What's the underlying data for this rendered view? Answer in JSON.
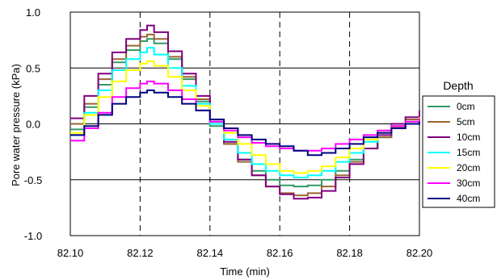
{
  "chart_data": {
    "type": "line",
    "xlabel": "Time (min)",
    "ylabel": "Pore water pressure (kPa)",
    "xlim": [
      82.1,
      82.2
    ],
    "ylim": [
      -1.0,
      1.0
    ],
    "x_ticks": [
      "82.10",
      "82.12",
      "82.14",
      "82.16",
      "82.18",
      "82.20"
    ],
    "y_ticks": [
      "1.0",
      "0.5",
      "0.0",
      "-0.5",
      "-1.0"
    ],
    "horizontal_grid": "solid at 0.5, 0.0, -0.5",
    "vertical_grid": "dashed at 82.12, 82.14, 82.16, 82.18",
    "legend_position": "right",
    "legend_title": "Depth",
    "series": [
      {
        "name": "0cm",
        "color": "#339966",
        "x": [
          82.1,
          82.104,
          82.108,
          82.112,
          82.116,
          82.12,
          82.122,
          82.124,
          82.128,
          82.132,
          82.136,
          82.14,
          82.144,
          82.148,
          82.152,
          82.156,
          82.16,
          82.164,
          82.168,
          82.172,
          82.176,
          82.18,
          82.184,
          82.188,
          82.192,
          82.196,
          82.2
        ],
        "y": [
          -0.05,
          0.15,
          0.35,
          0.55,
          0.66,
          0.74,
          0.76,
          0.72,
          0.58,
          0.4,
          0.2,
          -0.02,
          -0.18,
          -0.32,
          -0.42,
          -0.5,
          -0.55,
          -0.56,
          -0.55,
          -0.5,
          -0.42,
          -0.32,
          -0.22,
          -0.12,
          -0.04,
          0.02,
          0.08
        ]
      },
      {
        "name": "5cm",
        "color": "#996633",
        "x": [
          82.1,
          82.104,
          82.108,
          82.112,
          82.116,
          82.12,
          82.122,
          82.124,
          82.128,
          82.132,
          82.136,
          82.14,
          82.144,
          82.148,
          82.152,
          82.156,
          82.16,
          82.164,
          82.168,
          82.172,
          82.176,
          82.18,
          82.184,
          82.188,
          82.192,
          82.196,
          82.2
        ],
        "y": [
          0.0,
          0.18,
          0.4,
          0.58,
          0.7,
          0.78,
          0.8,
          0.76,
          0.6,
          0.42,
          0.22,
          0.0,
          -0.18,
          -0.34,
          -0.46,
          -0.56,
          -0.62,
          -0.64,
          -0.62,
          -0.56,
          -0.46,
          -0.34,
          -0.22,
          -0.12,
          -0.03,
          0.04,
          0.1
        ]
      },
      {
        "name": "10cm",
        "color": "#800080",
        "x": [
          82.1,
          82.104,
          82.108,
          82.112,
          82.116,
          82.12,
          82.122,
          82.124,
          82.128,
          82.132,
          82.136,
          82.14,
          82.144,
          82.148,
          82.152,
          82.156,
          82.16,
          82.164,
          82.168,
          82.172,
          82.176,
          82.18,
          82.184,
          82.188,
          82.192,
          82.196,
          82.2
        ],
        "y": [
          0.05,
          0.25,
          0.45,
          0.64,
          0.76,
          0.84,
          0.88,
          0.82,
          0.65,
          0.45,
          0.25,
          0.02,
          -0.16,
          -0.32,
          -0.46,
          -0.56,
          -0.63,
          -0.67,
          -0.66,
          -0.6,
          -0.48,
          -0.36,
          -0.22,
          -0.1,
          0.0,
          0.06,
          0.12
        ]
      },
      {
        "name": "15cm",
        "color": "#00ffff",
        "x": [
          82.1,
          82.104,
          82.108,
          82.112,
          82.116,
          82.12,
          82.122,
          82.124,
          82.128,
          82.132,
          82.136,
          82.14,
          82.144,
          82.148,
          82.152,
          82.156,
          82.16,
          82.164,
          82.168,
          82.172,
          82.176,
          82.18,
          82.184,
          82.188,
          82.192,
          82.196,
          82.2
        ],
        "y": [
          -0.1,
          0.1,
          0.3,
          0.48,
          0.58,
          0.64,
          0.68,
          0.62,
          0.5,
          0.34,
          0.18,
          0.0,
          -0.14,
          -0.26,
          -0.36,
          -0.42,
          -0.46,
          -0.48,
          -0.46,
          -0.42,
          -0.34,
          -0.26,
          -0.16,
          -0.08,
          -0.02,
          0.02,
          0.04
        ]
      },
      {
        "name": "20cm",
        "color": "#ffff00",
        "x": [
          82.1,
          82.104,
          82.108,
          82.112,
          82.116,
          82.12,
          82.122,
          82.124,
          82.128,
          82.132,
          82.136,
          82.14,
          82.144,
          82.148,
          82.152,
          82.156,
          82.16,
          82.164,
          82.168,
          82.172,
          82.176,
          82.18,
          82.184,
          82.188,
          82.192,
          82.196,
          82.2
        ],
        "y": [
          -0.08,
          0.08,
          0.24,
          0.38,
          0.48,
          0.54,
          0.56,
          0.52,
          0.42,
          0.3,
          0.16,
          0.04,
          -0.08,
          -0.18,
          -0.28,
          -0.36,
          -0.42,
          -0.44,
          -0.42,
          -0.38,
          -0.3,
          -0.22,
          -0.14,
          -0.08,
          -0.02,
          0.02,
          0.06
        ]
      },
      {
        "name": "30cm",
        "color": "#ff00ff",
        "x": [
          82.1,
          82.104,
          82.108,
          82.112,
          82.116,
          82.12,
          82.122,
          82.124,
          82.128,
          82.132,
          82.136,
          82.14,
          82.144,
          82.148,
          82.152,
          82.156,
          82.16,
          82.164,
          82.168,
          82.172,
          82.176,
          82.18,
          82.184,
          82.188,
          82.192,
          82.196,
          82.2
        ],
        "y": [
          -0.15,
          -0.04,
          0.1,
          0.24,
          0.32,
          0.36,
          0.38,
          0.36,
          0.3,
          0.22,
          0.12,
          0.02,
          -0.06,
          -0.12,
          -0.17,
          -0.2,
          -0.22,
          -0.24,
          -0.24,
          -0.22,
          -0.18,
          -0.14,
          -0.1,
          -0.06,
          -0.02,
          0.02,
          0.05
        ]
      },
      {
        "name": "40cm",
        "color": "#000080",
        "x": [
          82.1,
          82.104,
          82.108,
          82.112,
          82.116,
          82.12,
          82.122,
          82.124,
          82.128,
          82.132,
          82.136,
          82.14,
          82.144,
          82.148,
          82.152,
          82.156,
          82.16,
          82.164,
          82.168,
          82.172,
          82.176,
          82.18,
          82.184,
          82.188,
          82.192,
          82.196,
          82.2
        ],
        "y": [
          -0.1,
          -0.02,
          0.08,
          0.18,
          0.24,
          0.28,
          0.3,
          0.28,
          0.24,
          0.18,
          0.12,
          0.04,
          -0.04,
          -0.1,
          -0.14,
          -0.18,
          -0.2,
          -0.24,
          -0.28,
          -0.26,
          -0.22,
          -0.18,
          -0.12,
          -0.08,
          -0.04,
          0.0,
          0.02
        ]
      }
    ]
  }
}
